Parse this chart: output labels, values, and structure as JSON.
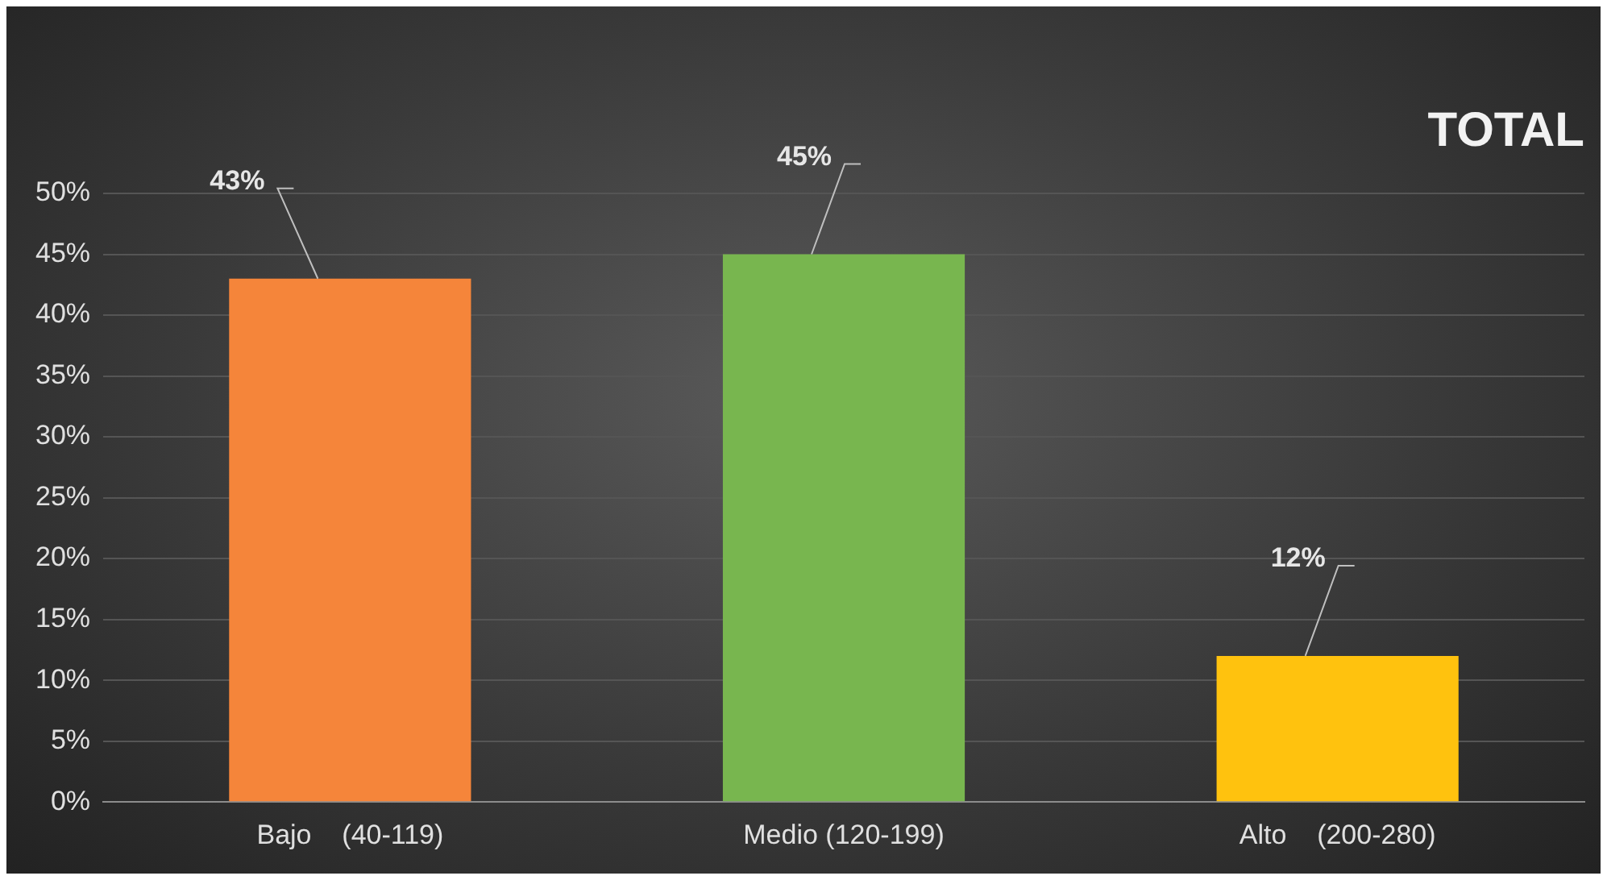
{
  "chart_data": {
    "type": "bar",
    "title": "TOTAL",
    "categories": [
      "Bajo    (40-119)",
      "Medio (120-199)",
      "Alto    (200-280)"
    ],
    "values": [
      43,
      45,
      12
    ],
    "colors": [
      "#f5853a",
      "#78b64f",
      "#ffc20e"
    ],
    "value_labels": [
      "43%",
      "45%",
      "12%"
    ],
    "ylim": [
      0,
      50
    ],
    "yticks": [
      {
        "value": 0,
        "label": "0%"
      },
      {
        "value": 5,
        "label": "5%"
      },
      {
        "value": 10,
        "label": "10%"
      },
      {
        "value": 15,
        "label": "15%"
      },
      {
        "value": 20,
        "label": "20%"
      },
      {
        "value": 25,
        "label": "25%"
      },
      {
        "value": 30,
        "label": "30%"
      },
      {
        "value": 35,
        "label": "35%"
      },
      {
        "value": 40,
        "label": "40%"
      },
      {
        "value": 45,
        "label": "45%"
      },
      {
        "value": 50,
        "label": "50%"
      }
    ],
    "grid": "y",
    "legend": false
  }
}
